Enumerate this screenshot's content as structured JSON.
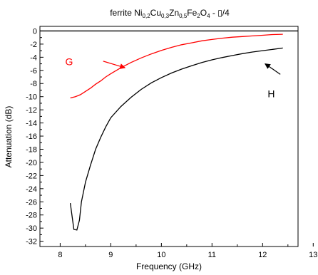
{
  "chart_data": {
    "type": "line",
    "title": {
      "prefix": "ferrite Ni",
      "parts": [
        {
          "sub": "0,2",
          "text": "Cu"
        },
        {
          "sub": "0,3",
          "text": "Zn"
        },
        {
          "sub": "0,5",
          "text": "Fe"
        },
        {
          "sub": "2",
          "text": "O"
        },
        {
          "sub": "4",
          "text": " - ▯/4"
        }
      ]
    },
    "xlabel": "Frequency (GHz)",
    "ylabel": "Attenuation (dB)",
    "xlim": [
      7.6,
      12.7
    ],
    "ylim": [
      -32.8,
      0.7
    ],
    "xticks": [
      "8",
      "9",
      "10",
      "11",
      "12",
      "13"
    ],
    "yticks": [
      "0",
      "-2",
      "-4",
      "-6",
      "-8",
      "-10",
      "-12",
      "-14",
      "-16",
      "-18",
      "-20",
      "-22",
      "-24",
      "-26",
      "-28",
      "-30",
      "-32"
    ],
    "grid": false,
    "reference_line": {
      "y": 0,
      "color": "#000000"
    },
    "series": [
      {
        "color": "#ff0000",
        "x": [
          8.2,
          8.3,
          8.4,
          8.5,
          8.6,
          8.7,
          8.8,
          8.9,
          9.0,
          9.2,
          9.4,
          9.6,
          9.8,
          10.0,
          10.2,
          10.4,
          10.6,
          10.8,
          11.0,
          11.2,
          11.4,
          11.6,
          11.8,
          12.0,
          12.2,
          12.4
        ],
        "y": [
          -10.2,
          -10.0,
          -9.7,
          -9.2,
          -8.7,
          -8.1,
          -7.6,
          -7.0,
          -6.5,
          -5.6,
          -4.8,
          -4.1,
          -3.5,
          -2.95,
          -2.5,
          -2.1,
          -1.8,
          -1.5,
          -1.3,
          -1.1,
          -0.95,
          -0.85,
          -0.75,
          -0.65,
          -0.55,
          -0.5
        ]
      },
      {
        "color": "#000000",
        "x": [
          8.2,
          8.27,
          8.33,
          8.38,
          8.42,
          8.5,
          8.6,
          8.7,
          8.8,
          8.9,
          9.0,
          9.2,
          9.4,
          9.6,
          9.8,
          10.0,
          10.2,
          10.4,
          10.6,
          10.8,
          11.0,
          11.2,
          11.4,
          11.6,
          11.8,
          12.0,
          12.2,
          12.4
        ],
        "y": [
          -26.2,
          -30.2,
          -30.3,
          -28.8,
          -26.0,
          -23.0,
          -20.4,
          -18.0,
          -16.2,
          -14.6,
          -13.2,
          -11.5,
          -10.1,
          -8.9,
          -7.9,
          -7.1,
          -6.4,
          -5.8,
          -5.3,
          -4.8,
          -4.4,
          -4.05,
          -3.75,
          -3.45,
          -3.2,
          -3.0,
          -2.8,
          -2.6
        ]
      }
    ],
    "annotations": [
      {
        "text": "G",
        "color": "#ff0000",
        "x": 8.1,
        "y": -5.2,
        "arrow_from": [
          8.85,
          -4.6
        ],
        "arrow_to": [
          9.28,
          -5.6
        ]
      },
      {
        "text": "H",
        "color": "#000000",
        "x": 12.1,
        "y": -10.1,
        "arrow_from": [
          12.35,
          -6.6
        ],
        "arrow_to": [
          12.05,
          -5.0
        ]
      }
    ]
  }
}
